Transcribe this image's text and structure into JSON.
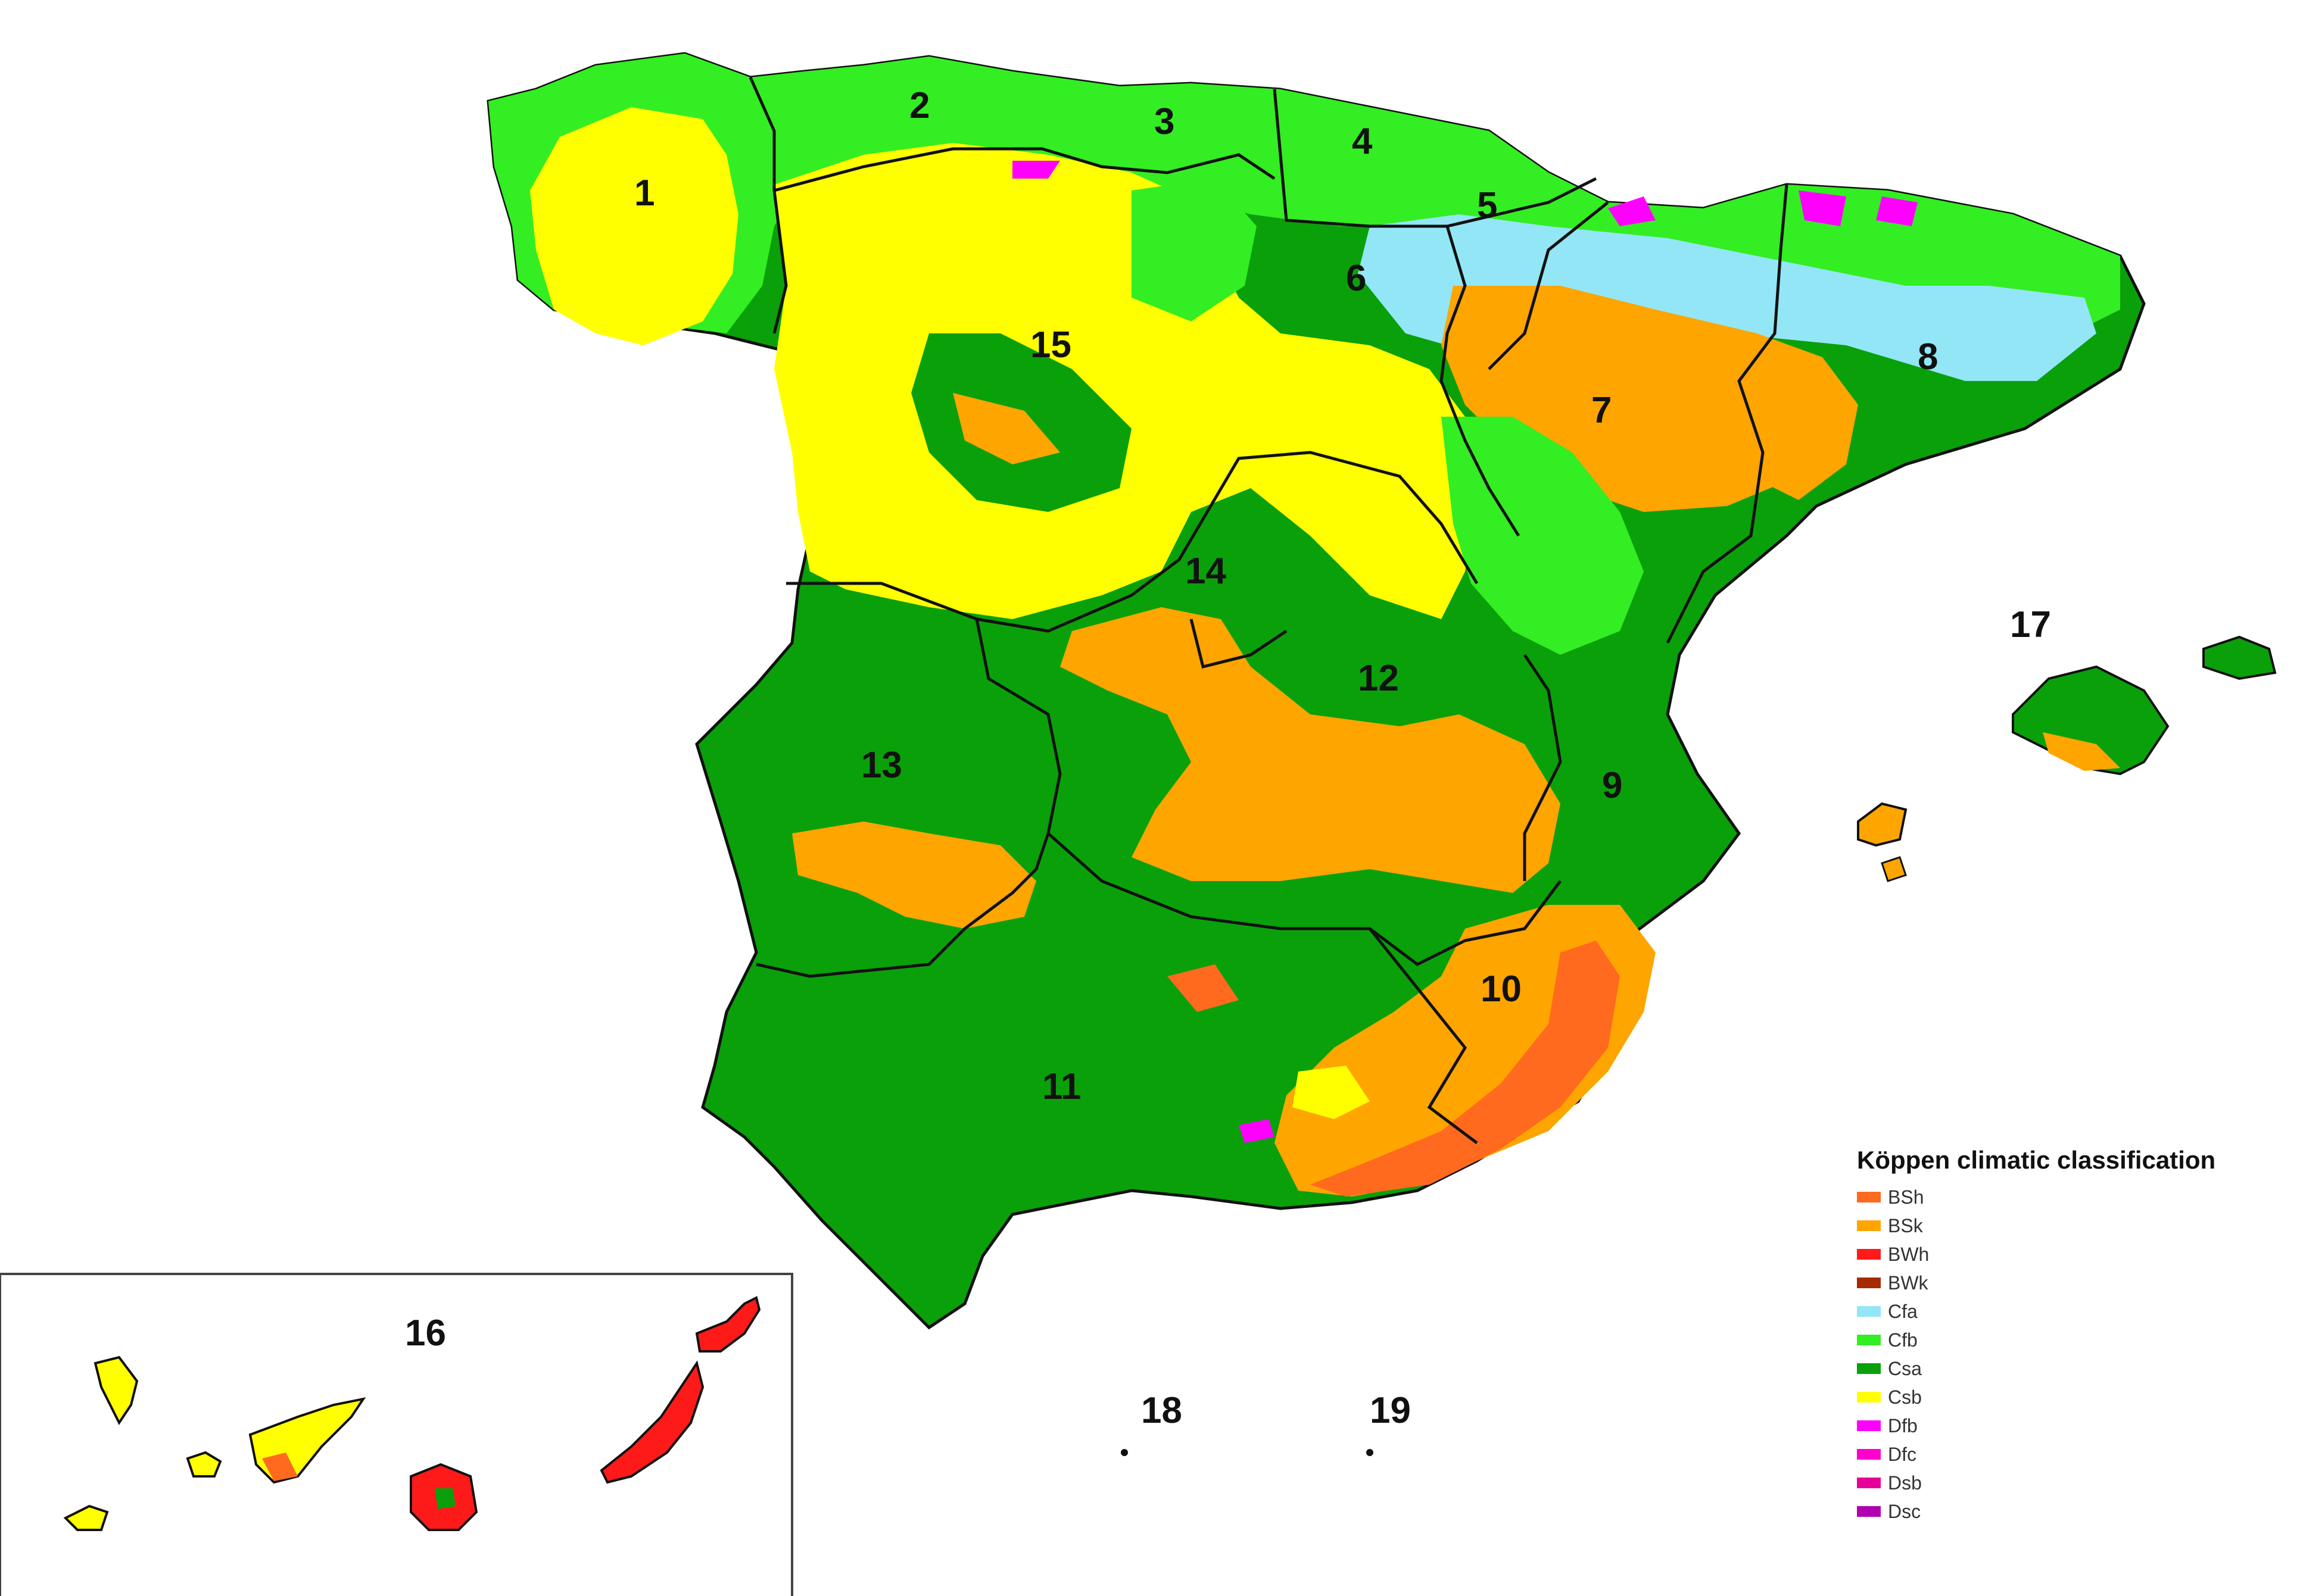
{
  "map": {
    "region_numbers": [
      "1",
      "2",
      "3",
      "4",
      "5",
      "6",
      "7",
      "8",
      "9",
      "10",
      "11",
      "12",
      "13",
      "14",
      "15",
      "16",
      "17",
      "18",
      "19"
    ]
  },
  "legend": {
    "title": "Köppen climatic classification",
    "items": [
      {
        "label": "BSh",
        "color": "#ff6a1f"
      },
      {
        "label": "BSk",
        "color": "#ffa500"
      },
      {
        "label": "BWh",
        "color": "#ff1a1a"
      },
      {
        "label": "BWk",
        "color": "#a52a00"
      },
      {
        "label": "Cfa",
        "color": "#93e6f5"
      },
      {
        "label": "Cfb",
        "color": "#33ee22"
      },
      {
        "label": "Csa",
        "color": "#0aa00a"
      },
      {
        "label": "Csb",
        "color": "#ffff00"
      },
      {
        "label": "Dfb",
        "color": "#ff00ff"
      },
      {
        "label": "Dfc",
        "color": "#ff00cc"
      },
      {
        "label": "Dsb",
        "color": "#e60099"
      },
      {
        "label": "Dsc",
        "color": "#b000b0"
      }
    ]
  }
}
